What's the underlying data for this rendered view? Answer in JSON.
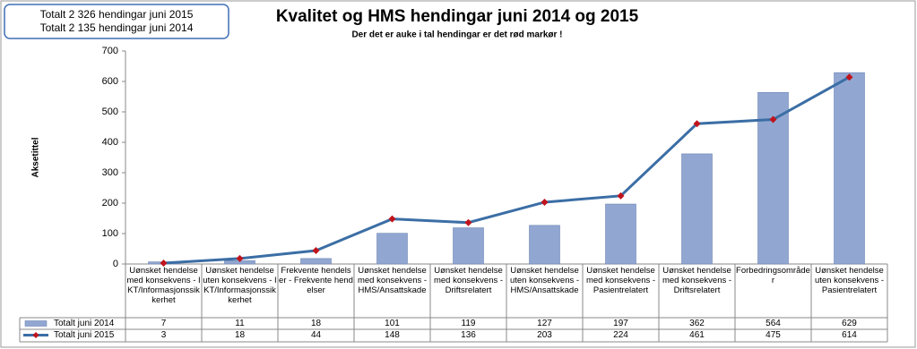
{
  "chart_data": {
    "type": "bar-line",
    "title": "Kvalitet og HMS hendingar juni 2014 og 2015",
    "subtitle": "Der det er auke i tal hendingar er det rød markør !",
    "info_box": [
      "Totalt 2 326 hendingar juni 2015",
      "Totalt 2 135 hendingar juni 2014"
    ],
    "y_label": "Aksetittel",
    "categories": [
      "Uønsket hendelse med konsekvens - IKT/Informasjonssikkerhet",
      "Uønsket hendelse uten konsekvens - IKT/Informasjonssikkerhet",
      "Frekvente hendelser - Frekvente hendelser",
      "Uønsket hendelse med konsekvens - HMS/Ansattskade",
      "Uønsket hendelse med konsekvens - Driftsrelatert",
      "Uønsket hendelse uten konsekvens - HMS/Ansattskade",
      "Uønsket hendelse med konsekvens - Pasientrelatert",
      "Uønsket hendelse med konsekvens - Driftsrelatert",
      "Forbedringsområder",
      "Uønsket hendelse uten konsekvens - Pasientrelatert"
    ],
    "series": [
      {
        "name": "Totalt juni 2014",
        "type": "bar",
        "color": "#91a7d2",
        "values": [
          7,
          11,
          18,
          101,
          119,
          127,
          197,
          362,
          564,
          629
        ]
      },
      {
        "name": "Totalt juni 2015",
        "type": "line",
        "color": "#3b6ea5",
        "marker_color": "#c0141c",
        "values": [
          3,
          18,
          44,
          148,
          136,
          203,
          224,
          461,
          475,
          614
        ]
      }
    ],
    "ylim": [
      0,
      700
    ],
    "yticks": [
      0,
      100,
      200,
      300,
      400,
      500,
      600,
      700
    ],
    "grid": false
  }
}
